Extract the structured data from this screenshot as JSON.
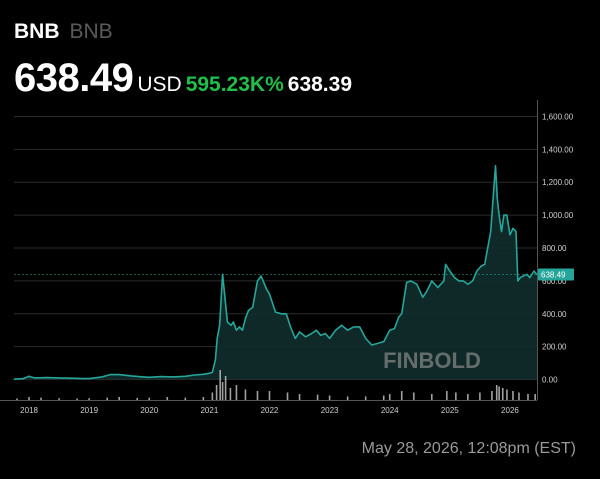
{
  "header": {
    "ticker": "BNB",
    "ticker_sub": "BNB",
    "price": "638.49",
    "currency": "USD",
    "change": "595.23K%",
    "prev": "638.39"
  },
  "watermark": "FINBOLD",
  "timestamp": "May 28, 2026, 12:08pm (EST)",
  "colors": {
    "line": "#26a69a",
    "fill": "#0f2e2b",
    "change": "#1fbf4a",
    "grid": "#2c2c2c",
    "background": "#000000"
  },
  "chart_data": {
    "type": "area",
    "title": "BNB",
    "x_unit": "year",
    "ylim": [
      -100,
      1700
    ],
    "xlim": [
      2017.75,
      2026.45
    ],
    "grid": true,
    "y_ticks": [
      "0.00",
      "200.00",
      "400.00",
      "600.00",
      "800.00",
      "1,000.00",
      "1,200.00",
      "1,400.00",
      "1,600.00"
    ],
    "x_ticks": [
      "2018",
      "2019",
      "2020",
      "2021",
      "2022",
      "2023",
      "2024",
      "2025",
      "2026"
    ],
    "last_value_label": "638.49",
    "series": [
      {
        "name": "BNB",
        "x": [
          2017.75,
          2017.9,
          2018.0,
          2018.04,
          2018.1,
          2018.3,
          2018.5,
          2018.7,
          2018.9,
          2019.0,
          2019.2,
          2019.35,
          2019.5,
          2019.7,
          2019.9,
          2020.0,
          2020.2,
          2020.4,
          2020.6,
          2020.75,
          2020.9,
          2021.0,
          2021.05,
          2021.1,
          2021.13,
          2021.17,
          2021.22,
          2021.3,
          2021.36,
          2021.4,
          2021.45,
          2021.5,
          2021.55,
          2021.6,
          2021.65,
          2021.72,
          2021.8,
          2021.86,
          2021.95,
          2022.0,
          2022.1,
          2022.2,
          2022.28,
          2022.35,
          2022.43,
          2022.5,
          2022.6,
          2022.7,
          2022.78,
          2022.85,
          2022.93,
          2023.0,
          2023.1,
          2023.2,
          2023.3,
          2023.4,
          2023.5,
          2023.6,
          2023.7,
          2023.8,
          2023.9,
          2024.0,
          2024.08,
          2024.15,
          2024.2,
          2024.28,
          2024.35,
          2024.45,
          2024.55,
          2024.62,
          2024.7,
          2024.8,
          2024.9,
          2024.93,
          2025.0,
          2025.08,
          2025.15,
          2025.22,
          2025.3,
          2025.38,
          2025.45,
          2025.52,
          2025.58,
          2025.63,
          2025.68,
          2025.72,
          2025.76,
          2025.79,
          2025.82,
          2025.86,
          2025.9,
          2025.95,
          2026.0,
          2026.05,
          2026.1,
          2026.13,
          2026.17,
          2026.22,
          2026.28,
          2026.33,
          2026.4,
          2026.45
        ],
        "values": [
          2,
          5,
          20,
          15,
          10,
          12,
          10,
          8,
          6,
          6,
          15,
          30,
          30,
          22,
          16,
          14,
          18,
          16,
          20,
          28,
          32,
          38,
          45,
          120,
          250,
          330,
          640,
          350,
          330,
          350,
          300,
          320,
          300,
          370,
          420,
          440,
          600,
          630,
          550,
          520,
          410,
          400,
          400,
          320,
          250,
          290,
          260,
          280,
          300,
          270,
          280,
          250,
          300,
          330,
          300,
          320,
          320,
          250,
          210,
          220,
          230,
          300,
          310,
          380,
          400,
          590,
          600,
          580,
          500,
          540,
          600,
          560,
          600,
          700,
          660,
          620,
          600,
          600,
          580,
          600,
          660,
          690,
          700,
          800,
          900,
          1100,
          1300,
          1100,
          1000,
          900,
          1000,
          1000,
          880,
          920,
          900,
          600,
          620,
          630,
          640,
          620,
          660,
          638.49
        ]
      }
    ],
    "volume": {
      "x": [
        2017.8,
        2018.0,
        2018.2,
        2018.5,
        2018.8,
        2019.0,
        2019.3,
        2019.5,
        2019.8,
        2020.0,
        2020.3,
        2020.6,
        2020.9,
        2021.05,
        2021.12,
        2021.18,
        2021.22,
        2021.27,
        2021.35,
        2021.45,
        2021.6,
        2021.8,
        2022.0,
        2022.3,
        2022.5,
        2022.8,
        2023.0,
        2023.3,
        2023.6,
        2023.9,
        2024.0,
        2024.2,
        2024.4,
        2024.7,
        2024.95,
        2025.1,
        2025.3,
        2025.5,
        2025.7,
        2025.78,
        2025.82,
        2025.88,
        2025.95,
        2026.05,
        2026.15,
        2026.3,
        2026.42
      ],
      "values": [
        0.05,
        0.1,
        0.08,
        0.06,
        0.05,
        0.06,
        0.08,
        0.1,
        0.07,
        0.08,
        0.1,
        0.08,
        0.1,
        0.25,
        0.5,
        1.0,
        0.6,
        0.8,
        0.4,
        0.5,
        0.35,
        0.3,
        0.3,
        0.25,
        0.2,
        0.18,
        0.15,
        0.12,
        0.12,
        0.15,
        0.2,
        0.3,
        0.25,
        0.2,
        0.3,
        0.25,
        0.2,
        0.25,
        0.3,
        0.5,
        0.45,
        0.4,
        0.35,
        0.3,
        0.25,
        0.2,
        0.2
      ]
    }
  }
}
